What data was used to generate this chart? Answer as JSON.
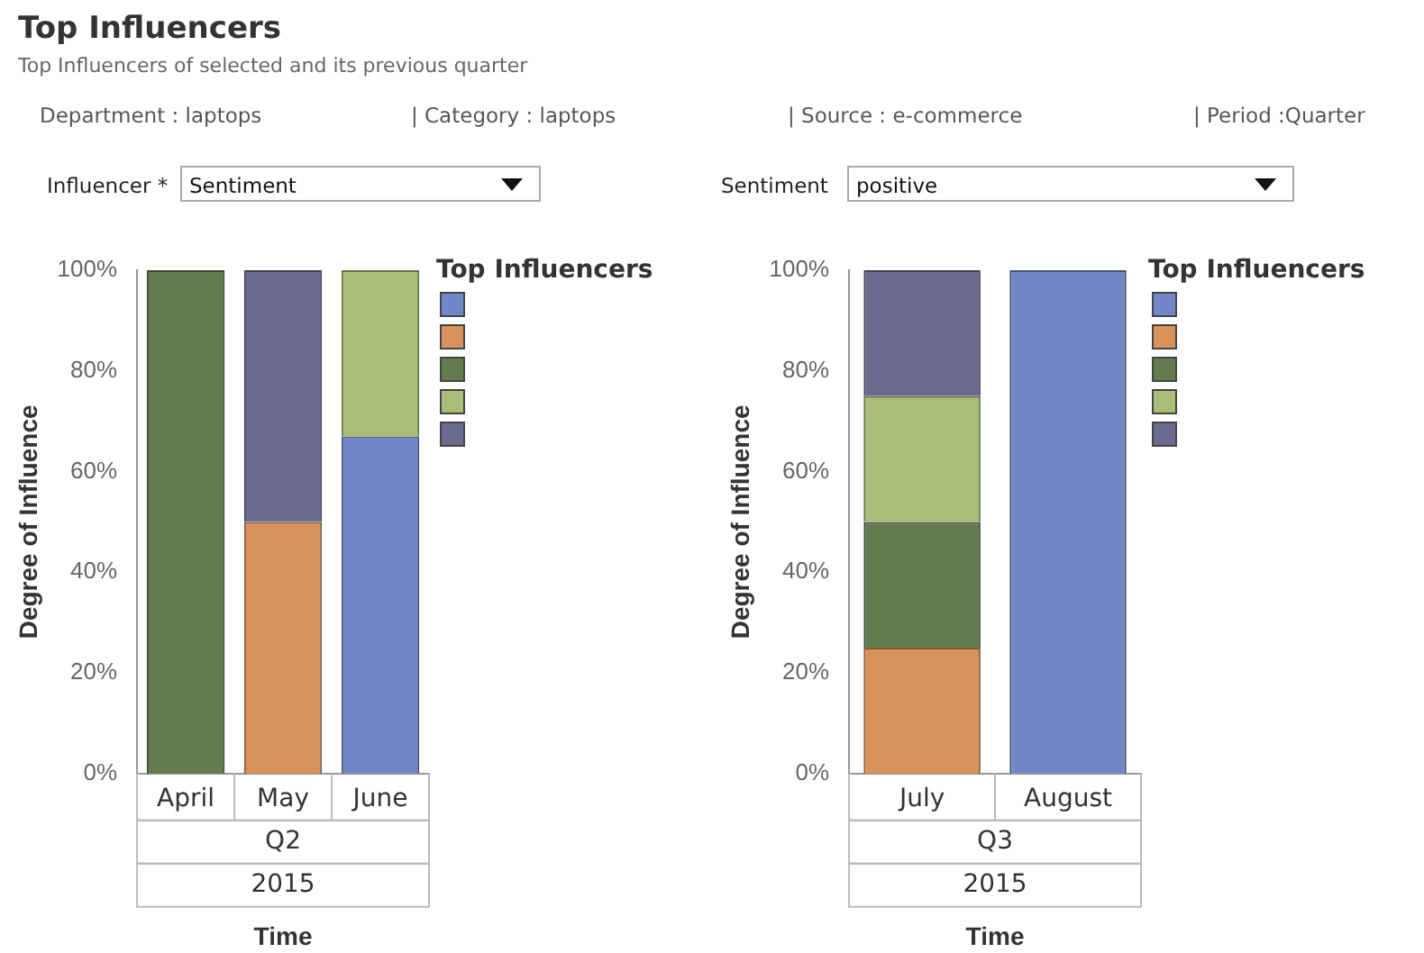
{
  "chart_data": [
    {
      "type": "other",
      "title": "Top Influencers",
      "subtitle": "Top Influencers of selected and its previous quarter",
      "annotations": [
        "Department : laptops",
        "| Category : laptops",
        "| Source : e-commerce",
        "| Period :Quarter",
        "Influencer *",
        "Sentiment",
        "Sentiment",
        "positive"
      ]
    },
    {
      "type": "bar",
      "stacked": true,
      "categories": [
        "April",
        "May",
        "June"
      ],
      "xlabel": "Time",
      "ylabel": "Degree of Influence",
      "legend_title": "Top Influencers",
      "ylim": [
        0,
        100
      ],
      "yticks": [
        {
          "value": 0,
          "label": "0%"
        },
        {
          "value": 20,
          "label": "20%"
        },
        {
          "value": 40,
          "label": "40%"
        },
        {
          "value": 60,
          "label": "60%"
        },
        {
          "value": 80,
          "label": "80%"
        },
        {
          "value": 100,
          "label": "100%"
        }
      ],
      "annotations": [
        "Q2",
        "2015"
      ],
      "series": [
        {
          "color": "#7088c8",
          "values": [
            null,
            null,
            67
          ]
        },
        {
          "color": "#d8925a",
          "values": [
            null,
            50,
            null
          ]
        },
        {
          "color": "#627c4e",
          "values": [
            100,
            null,
            null
          ]
        },
        {
          "color": "#a9bd78",
          "values": [
            null,
            null,
            33
          ]
        },
        {
          "color": "#6c6a90",
          "values": [
            null,
            50,
            null
          ]
        }
      ]
    },
    {
      "type": "bar",
      "stacked": true,
      "categories": [
        "July",
        "August"
      ],
      "xlabel": "Time",
      "ylabel": "Degree of Influence",
      "legend_title": "Top Influencers",
      "ylim": [
        0,
        100
      ],
      "yticks": [
        {
          "value": 0,
          "label": "0%"
        },
        {
          "value": 20,
          "label": "20%"
        },
        {
          "value": 40,
          "label": "40%"
        },
        {
          "value": 60,
          "label": "60%"
        },
        {
          "value": 80,
          "label": "80%"
        },
        {
          "value": 100,
          "label": "100%"
        }
      ],
      "annotations": [
        "Q3",
        "2015"
      ],
      "series": [
        {
          "color": "#7088c8",
          "values": [
            null,
            100
          ]
        },
        {
          "color": "#d8925a",
          "values": [
            25,
            null
          ]
        },
        {
          "color": "#627c4e",
          "values": [
            25,
            null
          ]
        },
        {
          "color": "#a9bd78",
          "values": [
            25,
            null
          ]
        },
        {
          "color": "#6c6a90",
          "values": [
            25,
            null
          ]
        }
      ]
    }
  ]
}
